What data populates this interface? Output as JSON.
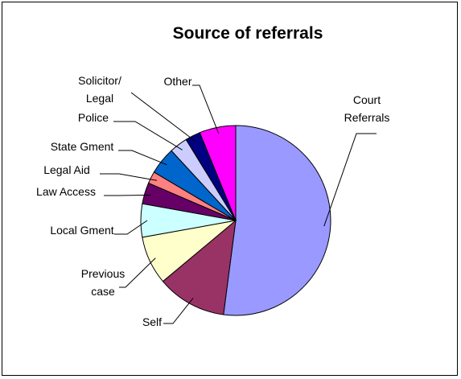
{
  "chart_data": {
    "type": "pie",
    "title": "Source of referrals",
    "unit": "percent share (estimated from slice angles)",
    "slices": [
      {
        "label_lines": [
          "Court",
          "Referrals"
        ],
        "value": 50.5,
        "color": "#9999FF"
      },
      {
        "label_lines": [
          "Self"
        ],
        "value": 11.5,
        "color": "#993366"
      },
      {
        "label_lines": [
          "Previous",
          "case"
        ],
        "value": 8.0,
        "color": "#FFFFCC"
      },
      {
        "label_lines": [
          "Local Gment"
        ],
        "value": 5.5,
        "color": "#CCFFFF"
      },
      {
        "label_lines": [
          "Law Access"
        ],
        "value": 3.5,
        "color": "#660066"
      },
      {
        "label_lines": [
          "Legal Aid"
        ],
        "value": 2.0,
        "color": "#FF8080"
      },
      {
        "label_lines": [
          "State Gment"
        ],
        "value": 4.5,
        "color": "#0066CC"
      },
      {
        "label_lines": [
          "Police"
        ],
        "value": 3.0,
        "color": "#CCCCFF"
      },
      {
        "label_lines": [
          "Solicitor/",
          "Legal"
        ],
        "value": 2.5,
        "color": "#000080"
      },
      {
        "label_lines": [
          "Other"
        ],
        "value": 6.0,
        "color": "#FF00FF"
      }
    ]
  }
}
